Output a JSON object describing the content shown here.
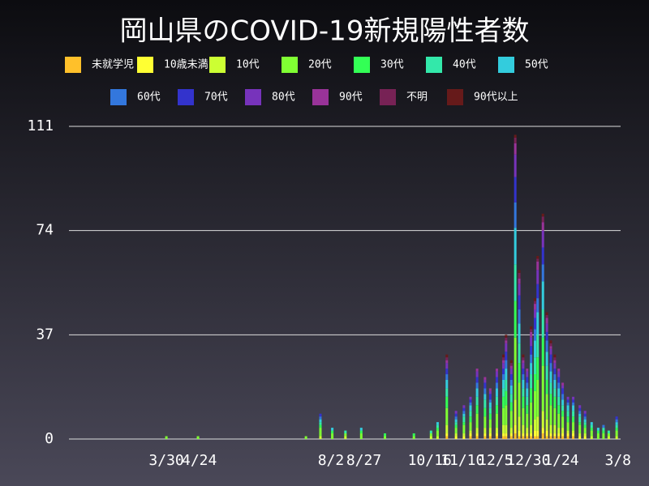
{
  "chart_data": {
    "type": "stacked_bar",
    "title": "岡山県のCOVID-19新規陽性者数",
    "x": [
      74,
      98,
      180,
      191,
      200,
      210,
      222,
      240,
      262,
      275,
      280,
      287,
      294,
      300,
      305,
      310,
      316,
      320,
      325,
      330,
      332,
      336,
      339,
      342,
      345,
      348,
      351,
      354,
      356,
      360,
      363,
      366,
      369,
      372,
      375,
      379,
      383,
      388,
      392,
      397,
      402,
      406,
      410,
      416
    ],
    "xlim": [
      0,
      419
    ],
    "xticks": [
      {
        "value": 74,
        "label": "3/30"
      },
      {
        "value": 99,
        "label": "4/24"
      },
      {
        "value": 199,
        "label": "8/2"
      },
      {
        "value": 224,
        "label": "8/27"
      },
      {
        "value": 274,
        "label": "10/16"
      },
      {
        "value": 299,
        "label": "11/10"
      },
      {
        "value": 324,
        "label": "12/5"
      },
      {
        "value": 349,
        "label": "12/30"
      },
      {
        "value": 374,
        "label": "1/24"
      },
      {
        "value": 417,
        "label": "3/8"
      }
    ],
    "ylim": [
      0,
      111
    ],
    "yticks": [
      0,
      37,
      74,
      111
    ],
    "grid": true,
    "series": [
      {
        "name": "未就学児",
        "color": "#ffc02a",
        "values": [
          0,
          0,
          0,
          0,
          0,
          0,
          0,
          0,
          0,
          0,
          0,
          1,
          0,
          0,
          1,
          1,
          1,
          1,
          1,
          1,
          1,
          1,
          2,
          1,
          1,
          1,
          1,
          1,
          1,
          2,
          1,
          1,
          1,
          1,
          1,
          1,
          1,
          0,
          0,
          0,
          0,
          0,
          0,
          0
        ]
      },
      {
        "name": "10歳未満",
        "color": "#ffff33",
        "values": [
          0,
          0,
          0,
          0,
          0,
          0,
          0,
          0,
          0,
          0,
          0,
          1,
          1,
          1,
          1,
          1,
          1,
          1,
          1,
          1,
          1,
          1,
          3,
          2,
          1,
          1,
          1,
          2,
          2,
          2,
          2,
          1,
          1,
          1,
          1,
          1,
          1,
          1,
          1,
          0,
          0,
          0,
          0,
          0
        ]
      },
      {
        "name": "10代",
        "color": "#ccff33",
        "values": [
          0,
          0,
          0,
          1,
          0,
          1,
          0,
          0,
          0,
          1,
          1,
          3,
          1,
          1,
          1,
          2,
          2,
          2,
          2,
          3,
          3,
          2,
          9,
          5,
          3,
          2,
          3,
          4,
          5,
          6,
          4,
          3,
          3,
          2,
          2,
          1,
          1,
          1,
          1,
          1,
          0,
          0,
          1,
          1
        ]
      },
      {
        "name": "20代",
        "color": "#80ff33",
        "values": [
          1,
          1,
          1,
          3,
          2,
          1,
          2,
          1,
          1,
          1,
          2,
          6,
          2,
          3,
          3,
          5,
          4,
          3,
          5,
          6,
          7,
          6,
          22,
          12,
          6,
          5,
          8,
          10,
          13,
          16,
          9,
          7,
          6,
          5,
          4,
          3,
          3,
          3,
          2,
          2,
          2,
          2,
          1,
          2
        ]
      },
      {
        "name": "30代",
        "color": "#33ff55",
        "values": [
          0,
          0,
          0,
          1,
          1,
          0,
          1,
          1,
          1,
          0,
          1,
          4,
          1,
          1,
          2,
          3,
          3,
          2,
          3,
          4,
          5,
          3,
          13,
          7,
          4,
          3,
          5,
          6,
          8,
          10,
          5,
          4,
          4,
          3,
          2,
          2,
          2,
          1,
          1,
          1,
          1,
          1,
          0,
          1
        ]
      },
      {
        "name": "40代",
        "color": "#33e8aa",
        "values": [
          0,
          0,
          0,
          1,
          0,
          1,
          0,
          0,
          0,
          1,
          1,
          3,
          1,
          2,
          2,
          3,
          3,
          2,
          3,
          3,
          4,
          3,
          13,
          7,
          3,
          3,
          5,
          6,
          8,
          10,
          5,
          4,
          3,
          3,
          2,
          2,
          2,
          2,
          1,
          1,
          0,
          1,
          1,
          1
        ]
      },
      {
        "name": "50代",
        "color": "#33ccdd",
        "values": [
          0,
          0,
          0,
          1,
          1,
          0,
          1,
          0,
          0,
          0,
          1,
          3,
          1,
          1,
          2,
          3,
          2,
          2,
          3,
          3,
          4,
          3,
          13,
          7,
          3,
          3,
          4,
          6,
          8,
          10,
          5,
          4,
          3,
          3,
          2,
          2,
          2,
          1,
          1,
          1,
          1,
          0,
          0,
          1
        ]
      },
      {
        "name": "60代",
        "color": "#3377dd",
        "values": [
          0,
          0,
          0,
          1,
          0,
          0,
          0,
          0,
          0,
          0,
          0,
          2,
          1,
          1,
          1,
          2,
          2,
          1,
          2,
          2,
          3,
          2,
          9,
          5,
          2,
          2,
          3,
          4,
          5,
          6,
          4,
          3,
          2,
          2,
          2,
          1,
          1,
          1,
          1,
          0,
          0,
          1,
          0,
          1
        ]
      },
      {
        "name": "70代",
        "color": "#3333cc",
        "values": [
          0,
          0,
          0,
          1,
          0,
          0,
          0,
          0,
          0,
          0,
          0,
          2,
          1,
          1,
          1,
          2,
          2,
          2,
          2,
          2,
          3,
          2,
          9,
          5,
          2,
          2,
          3,
          4,
          5,
          6,
          3,
          3,
          2,
          2,
          2,
          1,
          1,
          1,
          1,
          0,
          0,
          0,
          0,
          1
        ]
      },
      {
        "name": "80代",
        "color": "#7733bb",
        "values": [
          0,
          0,
          0,
          0,
          0,
          0,
          0,
          0,
          0,
          0,
          0,
          2,
          1,
          1,
          1,
          2,
          1,
          1,
          2,
          2,
          3,
          2,
          8,
          4,
          2,
          2,
          3,
          3,
          5,
          6,
          3,
          2,
          2,
          2,
          1,
          1,
          1,
          1,
          1,
          0,
          0,
          0,
          0,
          0
        ]
      },
      {
        "name": "90代",
        "color": "#993399",
        "values": [
          0,
          0,
          0,
          0,
          0,
          0,
          0,
          0,
          0,
          0,
          0,
          1,
          0,
          0,
          0,
          1,
          1,
          1,
          1,
          1,
          1,
          1,
          4,
          2,
          1,
          1,
          2,
          2,
          3,
          3,
          2,
          1,
          1,
          1,
          1,
          0,
          0,
          0,
          0,
          0,
          0,
          0,
          0,
          0
        ]
      },
      {
        "name": "不明",
        "color": "#772255",
        "values": [
          0,
          0,
          0,
          0,
          0,
          0,
          0,
          0,
          0,
          0,
          0,
          1,
          0,
          0,
          0,
          0,
          0,
          0,
          0,
          1,
          1,
          1,
          2,
          2,
          1,
          0,
          1,
          1,
          1,
          2,
          1,
          1,
          1,
          0,
          0,
          0,
          0,
          0,
          0,
          0,
          0,
          0,
          0,
          0
        ]
      },
      {
        "name": "90代以上",
        "color": "#661a1a",
        "values": [
          0,
          0,
          0,
          0,
          0,
          0,
          0,
          0,
          0,
          0,
          0,
          1,
          0,
          0,
          0,
          0,
          0,
          0,
          0,
          1,
          1,
          1,
          1,
          1,
          1,
          0,
          1,
          1,
          1,
          1,
          1,
          1,
          1,
          0,
          0,
          0,
          0,
          0,
          0,
          0,
          0,
          0,
          0,
          0
        ]
      }
    ]
  }
}
